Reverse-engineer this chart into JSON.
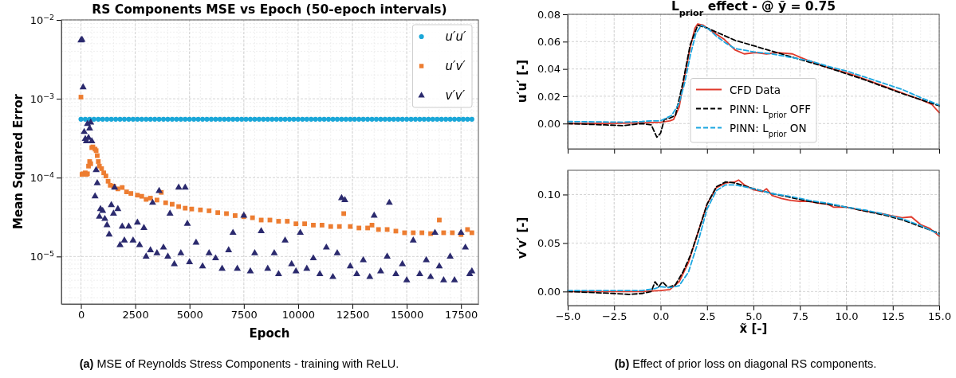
{
  "chart_data": [
    {
      "type": "scatter",
      "title": "RS Components MSE vs Epoch (50-epoch intervals)",
      "xlabel": "Epoch",
      "ylabel": "Mean Squared Error",
      "log": "y",
      "grid": true,
      "legend": "top right",
      "xlim": [
        -900,
        18300
      ],
      "xticks": [
        0,
        2500,
        5000,
        7500,
        10000,
        12500,
        15000,
        17500
      ],
      "ylim": [
        2.5e-06,
        0.01
      ],
      "yticks": [
        {
          "value": 1e-05,
          "label": "10$^{−5}$"
        },
        {
          "value": 0.0001,
          "label": "10$^{−4}$"
        },
        {
          "value": 0.001,
          "label": "10$^{−3}$"
        },
        {
          "value": 0.01,
          "label": "10$^{−2}$"
        }
      ],
      "annotations": [
        "(a) MSE of Reynolds Stress Components - training with ReLU."
      ],
      "series": [
        {
          "name": "u′u′",
          "color": "#1aa7d8",
          "marker": "circle",
          "x": [
            0,
            200,
            400,
            600,
            800,
            1000,
            1200,
            1400,
            1600,
            1800,
            2000,
            2200,
            2400,
            2600,
            2800,
            3000,
            3200,
            3400,
            3600,
            3800,
            4000,
            4200,
            4400,
            4600,
            4800,
            5000,
            5200,
            5400,
            5600,
            5800,
            6000,
            6200,
            6400,
            6600,
            6800,
            7000,
            7200,
            7400,
            7600,
            7800,
            8000,
            8200,
            8400,
            8600,
            8800,
            9000,
            9200,
            9400,
            9600,
            9800,
            10000,
            10200,
            10400,
            10600,
            10800,
            11000,
            11200,
            11400,
            11600,
            11800,
            12000,
            12200,
            12400,
            12600,
            12800,
            13000,
            13200,
            13400,
            13600,
            13800,
            14000,
            14200,
            14400,
            14600,
            14800,
            15000,
            15200,
            15400,
            15600,
            15800,
            16000,
            16200,
            16400,
            16600,
            16800,
            17000,
            17200,
            17400,
            17600,
            17800,
            18000
          ],
          "values": [
            0.00055,
            0.00055,
            0.00055,
            0.00055,
            0.00055,
            0.00055,
            0.00055,
            0.00055,
            0.00055,
            0.00055,
            0.00055,
            0.00055,
            0.00055,
            0.00055,
            0.00055,
            0.00055,
            0.00055,
            0.00055,
            0.00055,
            0.00055,
            0.00055,
            0.00055,
            0.00055,
            0.00055,
            0.00055,
            0.00055,
            0.00055,
            0.00055,
            0.00055,
            0.00055,
            0.00055,
            0.00055,
            0.00055,
            0.00055,
            0.00055,
            0.00055,
            0.00055,
            0.00055,
            0.00055,
            0.00055,
            0.00055,
            0.00055,
            0.00055,
            0.00055,
            0.00055,
            0.00055,
            0.00055,
            0.00055,
            0.00055,
            0.00055,
            0.00055,
            0.00055,
            0.00055,
            0.00055,
            0.00055,
            0.00055,
            0.00055,
            0.00055,
            0.00055,
            0.00055,
            0.00055,
            0.00055,
            0.00055,
            0.00055,
            0.00055,
            0.00055,
            0.00055,
            0.00055,
            0.00055,
            0.00055,
            0.00055,
            0.00055,
            0.00055,
            0.00055,
            0.00055,
            0.00055,
            0.00055,
            0.00055,
            0.00055,
            0.00055,
            0.00055,
            0.00055,
            0.00055,
            0.00055,
            0.00055,
            0.00055,
            0.00055,
            0.00055,
            0.00055,
            0.00055,
            0.00055
          ]
        },
        {
          "name": "u′v′",
          "color": "#ed7d31",
          "marker": "square",
          "x": [
            0,
            50,
            100,
            150,
            200,
            250,
            300,
            350,
            400,
            450,
            500,
            550,
            650,
            700,
            750,
            800,
            850,
            950,
            1050,
            1150,
            1250,
            1350,
            1500,
            1700,
            1900,
            2100,
            2300,
            2600,
            2800,
            3000,
            3200,
            3500,
            3700,
            3900,
            4200,
            4500,
            4800,
            5100,
            5500,
            5900,
            6300,
            6700,
            7100,
            7500,
            7900,
            8300,
            8700,
            9100,
            9500,
            9900,
            10300,
            10700,
            11100,
            11500,
            11900,
            12100,
            12400,
            12800,
            13200,
            13400,
            13700,
            14100,
            14500,
            14900,
            15300,
            15700,
            16100,
            16500,
            16700,
            17100,
            17500,
            17800,
            18000
          ],
          "values": [
            0.00105,
            0.00011,
            0.000112,
            0.00011,
            0.000115,
            0.00011,
            0.000112,
            0.00014,
            0.00016,
            0.00015,
            0.00024,
            0.000245,
            0.00023,
            0.00022,
            0.00019,
            0.00016,
            0.00014,
            0.00013,
            0.000115,
            0.000105,
            9e-05,
            8e-05,
            7.8e-05,
            7.2e-05,
            7.5e-05,
            6.6e-05,
            6.3e-05,
            6e-05,
            5.8e-05,
            5.3e-05,
            5.5e-05,
            5.2e-05,
            6.5e-05,
            4.8e-05,
            4.6e-05,
            4.3e-05,
            4.1e-05,
            4e-05,
            3.9e-05,
            3.8e-05,
            3.6e-05,
            3.5e-05,
            3.3e-05,
            3.2e-05,
            3.1e-05,
            2.9e-05,
            2.9e-05,
            2.8e-05,
            2.8e-05,
            2.6e-05,
            2.6e-05,
            2.5e-05,
            2.5e-05,
            2.4e-05,
            2.4e-05,
            3.5e-05,
            2.4e-05,
            2.3e-05,
            2.3e-05,
            2.5e-05,
            2.2e-05,
            2.2e-05,
            2.1e-05,
            2e-05,
            2e-05,
            2e-05,
            1.95e-05,
            2.9e-05,
            2e-05,
            2e-05,
            1.9e-05,
            2.2e-05,
            2e-05
          ]
        },
        {
          "name": "v′v′",
          "color": "#2b2a6e",
          "marker": "triangle",
          "x": [
            0,
            50,
            100,
            150,
            200,
            250,
            300,
            350,
            400,
            450,
            500,
            650,
            700,
            750,
            850,
            900,
            1000,
            1100,
            1200,
            1300,
            1400,
            1500,
            1550,
            1700,
            1800,
            1900,
            2000,
            2200,
            2400,
            2600,
            2700,
            2900,
            3000,
            3200,
            3300,
            3500,
            3600,
            3800,
            4000,
            4100,
            4300,
            4500,
            4600,
            4800,
            4900,
            5000,
            5300,
            5600,
            5900,
            6200,
            6500,
            6800,
            7000,
            7200,
            7500,
            7800,
            8000,
            8300,
            8600,
            8900,
            9100,
            9400,
            9700,
            9900,
            10100,
            10400,
            10700,
            11000,
            11300,
            11600,
            11800,
            12000,
            12150,
            12400,
            12700,
            13000,
            13300,
            13500,
            13800,
            14100,
            14200,
            14500,
            14800,
            15000,
            15300,
            15600,
            15900,
            16100,
            16300,
            16500,
            16700,
            17000,
            17200,
            17500,
            17700,
            17900,
            18000
          ],
          "values": [
            0.0055,
            0.0056,
            0.0014,
            0.00038,
            0.00031,
            0.00029,
            0.00048,
            0.00032,
            0.00042,
            0.0005,
            0.00029,
            5.8e-05,
            0.000125,
            8.5e-05,
            3.2e-05,
            4e-05,
            3.8e-05,
            3e-05,
            2.5e-05,
            1.9e-05,
            4.5e-05,
            3.5e-05,
            7.5e-05,
            4e-05,
            1.4e-05,
            2.4e-05,
            1.6e-05,
            2.4e-05,
            1.6e-05,
            2.7e-05,
            1.4e-05,
            2.3e-05,
            1e-05,
            1.2e-05,
            4.8e-05,
            1.1e-05,
            6.8e-05,
            1.3e-05,
            1e-05,
            3.5e-05,
            8e-06,
            7.5e-05,
            1.1e-05,
            7.5e-05,
            2.6e-05,
            8.5e-06,
            1.5e-05,
            7.5e-06,
            1.1e-05,
            9.5e-06,
            7e-06,
            1.2e-05,
            2e-05,
            7e-06,
            3.3e-05,
            6.5e-06,
            1.1e-05,
            2.1e-05,
            7e-06,
            1.1e-05,
            6e-06,
            1.6e-05,
            8e-06,
            6.5e-06,
            2e-05,
            7e-06,
            9.5e-06,
            6e-06,
            1.3e-05,
            5.5e-06,
            1.1e-05,
            5.5e-05,
            5.2e-05,
            7.5e-06,
            6e-06,
            9e-06,
            5.5e-06,
            3.3e-05,
            6.5e-06,
            1e-05,
            4.8e-05,
            6e-06,
            8e-06,
            5e-06,
            1.6e-05,
            6e-06,
            9e-06,
            5.5e-06,
            2e-05,
            7.5e-06,
            5e-06,
            1e-05,
            5e-06,
            2e-05,
            1.3e-05,
            6e-06,
            6.5e-06
          ]
        }
      ]
    },
    {
      "type": "line",
      "title": "L$_{prior}$ effect - @ ỹ = 0.75",
      "ylabel": "u′u′ [-]",
      "grid": true,
      "legend": "bottom",
      "tick_labels": "y",
      "xlim": [
        -5,
        15
      ],
      "xticks": [
        -5,
        -2.5,
        0,
        2.5,
        5,
        7.5,
        10,
        12.5,
        15
      ],
      "ylim": [
        -0.0185,
        0.08
      ],
      "yticks": [
        {
          "value": 0,
          "label": "0.00"
        },
        {
          "value": 0.02,
          "label": "0.02"
        },
        {
          "value": 0.04,
          "label": "0.04"
        },
        {
          "value": 0.06,
          "label": "0.06"
        },
        {
          "value": 0.08,
          "label": "0.08"
        }
      ],
      "series": [
        {
          "name": "CFD Data",
          "color": "#e0392b",
          "line_style": "solid",
          "x": [
            -5,
            -3,
            -1,
            0,
            0.5,
            0.7,
            1.0,
            1.3,
            1.6,
            1.85,
            2.0,
            2.3,
            2.6,
            3.4,
            4.0,
            4.5,
            5.1,
            5.7,
            6.3,
            7.1,
            7.5,
            8.75,
            10.3,
            11.8,
            13.35,
            14.1,
            14.6,
            15
          ],
          "values": [
            0,
            0,
            0.0005,
            0.001,
            0.002,
            0.003,
            0.012,
            0.035,
            0.056,
            0.07,
            0.073,
            0.072,
            0.069,
            0.062,
            0.054,
            0.051,
            0.052,
            0.051,
            0.052,
            0.051,
            0.0486,
            0.042,
            0.036,
            0.0285,
            0.0207,
            0.017,
            0.014,
            0.008
          ]
        },
        {
          "name": "PINN: L$_{prior}$ OFF",
          "color": "#000000",
          "line_style": "dashed",
          "x": [
            -5,
            -3,
            -2,
            -1,
            -0.5,
            -0.2,
            0,
            0.2,
            0.5,
            0.8,
            1.2,
            1.6,
            2.0,
            2.5,
            3,
            4,
            5,
            6,
            7,
            8,
            9,
            10,
            11,
            12,
            13,
            14,
            15
          ],
          "values": [
            0,
            -0.001,
            -0.0015,
            0,
            -0.001,
            -0.01,
            -0.007,
            0.003,
            0.004,
            0.006,
            0.03,
            0.058,
            0.072,
            0.07,
            0.067,
            0.061,
            0.057,
            0.053,
            0.049,
            0.045,
            0.041,
            0.0365,
            0.032,
            0.027,
            0.022,
            0.0175,
            0.013
          ]
        },
        {
          "name": "PINN: L$_{prior}$ ON",
          "color": "#1ba6e0",
          "line_style": "dashed",
          "x": [
            -5,
            -2,
            -1,
            -0.5,
            0,
            0.3,
            0.6,
            1.0,
            1.3,
            1.6,
            1.9,
            2.2,
            2.6,
            3,
            3.5,
            4,
            5,
            6,
            7,
            8,
            9,
            10,
            11,
            12,
            13,
            14,
            15
          ],
          "values": [
            0.0015,
            0.001,
            0.0015,
            0.002,
            0.002,
            0.004,
            0.006,
            0.015,
            0.03,
            0.05,
            0.066,
            0.072,
            0.069,
            0.064,
            0.059,
            0.055,
            0.0525,
            0.051,
            0.0485,
            0.046,
            0.042,
            0.0385,
            0.034,
            0.0295,
            0.025,
            0.019,
            0.0135
          ]
        }
      ]
    },
    {
      "type": "line",
      "xlabel": "x̃ [-]",
      "ylabel": "v′v′ [-]",
      "grid": true,
      "xlim": [
        -5,
        15
      ],
      "xticks": [
        {
          "value": -5,
          "label": "−5.0"
        },
        {
          "value": -2.5,
          "label": "−2.5"
        },
        {
          "value": 0,
          "label": "0.0"
        },
        {
          "value": 2.5,
          "label": "2.5"
        },
        {
          "value": 5,
          "label": "5.0"
        },
        {
          "value": 7.5,
          "label": "7.5"
        },
        {
          "value": 10,
          "label": "10.0"
        },
        {
          "value": 12.5,
          "label": "12.5"
        },
        {
          "value": 15,
          "label": "15.0"
        }
      ],
      "ylim": [
        -0.0145,
        0.125
      ],
      "yticks": [
        {
          "value": 0,
          "label": "0.00"
        },
        {
          "value": 0.05,
          "label": "0.05"
        },
        {
          "value": 0.1,
          "label": "0.10"
        }
      ],
      "annotations": [
        "(b) Effect of prior loss on diagonal RS components."
      ],
      "series": [
        {
          "color": "#e0392b",
          "line_style": "solid",
          "x": [
            -5,
            -1,
            0,
            0.5,
            1.0,
            1.5,
            2.0,
            2.5,
            3.0,
            3.5,
            4.0,
            4.2,
            4.5,
            5.0,
            5.5,
            5.7,
            6,
            6.5,
            7,
            7.5,
            8,
            8.5,
            9,
            9.3,
            10,
            11,
            12,
            12.5,
            13,
            13.5,
            14,
            14.5,
            15
          ],
          "values": [
            0,
            0,
            0.001,
            0.002,
            0.01,
            0.03,
            0.06,
            0.09,
            0.107,
            0.112,
            0.113,
            0.115,
            0.11,
            0.105,
            0.103,
            0.106,
            0.099,
            0.096,
            0.094,
            0.093,
            0.093,
            0.091,
            0.09,
            0.087,
            0.087,
            0.083,
            0.08,
            0.078,
            0.076,
            0.077,
            0.069,
            0.065,
            0.057
          ]
        },
        {
          "color": "#000000",
          "line_style": "dashed",
          "x": [
            -5,
            -2.5,
            -1.7,
            -1,
            -0.5,
            -0.3,
            -0.1,
            0.1,
            0.4,
            0.8,
            1.2,
            1.6,
            2.0,
            2.5,
            3.0,
            3.5,
            4.0,
            5,
            6,
            7,
            8,
            9,
            10,
            11,
            12,
            13,
            14,
            15
          ],
          "values": [
            0,
            -0.002,
            -0.003,
            -0.002,
            0,
            0.01,
            0.005,
            0.01,
            0.004,
            0.007,
            0.02,
            0.037,
            0.06,
            0.09,
            0.108,
            0.113,
            0.112,
            0.106,
            0.101,
            0.097,
            0.093,
            0.09,
            0.087,
            0.083,
            0.079,
            0.074,
            0.067,
            0.06
          ]
        },
        {
          "color": "#1ba6e0",
          "line_style": "dashed",
          "x": [
            -5,
            -2,
            -1,
            -0.3,
            0,
            0.5,
            1.0,
            1.5,
            2.0,
            2.5,
            3.0,
            3.5,
            4.0,
            5,
            6,
            7,
            8,
            9,
            10,
            11,
            12,
            13,
            14,
            15
          ],
          "values": [
            0.001,
            0.001,
            0.001,
            0.003,
            0.005,
            0.004,
            0.006,
            0.02,
            0.05,
            0.085,
            0.104,
            0.11,
            0.11,
            0.106,
            0.101,
            0.098,
            0.094,
            0.091,
            0.087,
            0.084,
            0.08,
            0.075,
            0.068,
            0.059
          ]
        }
      ]
    }
  ]
}
